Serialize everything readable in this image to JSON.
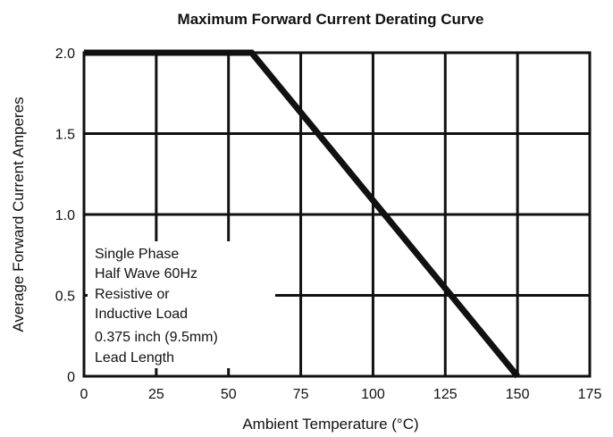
{
  "chart_data": {
    "type": "line",
    "title": "Maximum Forward Current Derating Curve",
    "xlabel": "Ambient Temperature (°C)",
    "ylabel": "Average Forward Current Amperes",
    "xlim": [
      0,
      175
    ],
    "ylim": [
      0,
      2.0
    ],
    "x_ticks": [
      0,
      25,
      50,
      75,
      100,
      125,
      150,
      175
    ],
    "x_tick_labels": [
      "0",
      "25",
      "50",
      "75",
      "100",
      "125",
      "150",
      "175"
    ],
    "y_ticks": [
      0,
      0.5,
      1.0,
      1.5,
      2.0
    ],
    "y_tick_labels": [
      "0",
      "0.5",
      "1.0",
      "1.5",
      "2.0"
    ],
    "grid": true,
    "legend": "none",
    "series": [
      {
        "x": [
          0,
          58,
          150
        ],
        "y": [
          2.0,
          2.0,
          0
        ],
        "color": "#111111"
      }
    ],
    "annotations": [
      "Single Phase",
      "Half Wave 60Hz",
      "Resistive or",
      "Inductive Load",
      "0.375 inch (9.5mm)",
      "Lead Length"
    ]
  }
}
